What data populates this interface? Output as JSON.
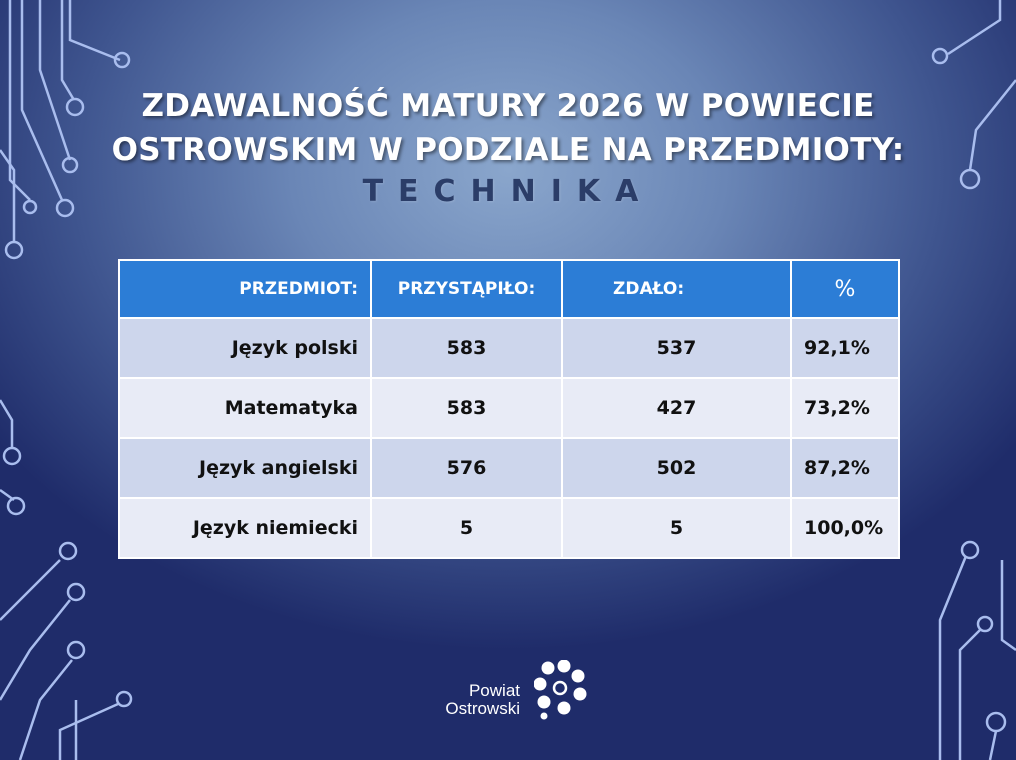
{
  "slide": {
    "title_line1": "ZDAWALNOŚĆ MATURY 2026 W POWIECIE",
    "title_line2": "OSTROWSKIM W PODZIALE NA PRZEDMIOTY:",
    "subtitle": "TECHNIKA"
  },
  "table": {
    "headers": [
      "PRZEDMIOT:",
      "PRZYSTĄPIŁO:",
      "ZDAŁO:",
      "%"
    ],
    "rows": [
      {
        "subject": "Język polski",
        "taken": "583",
        "passed": "537",
        "pct": "92,1%"
      },
      {
        "subject": "Matematyka",
        "taken": "583",
        "passed": "427",
        "pct": "73,2%"
      },
      {
        "subject": "Język angielski",
        "taken": "576",
        "passed": "502",
        "pct": "87,2%"
      },
      {
        "subject": "Język niemiecki",
        "taken": "5",
        "passed": "5",
        "pct": "100,0%"
      }
    ]
  },
  "logo": {
    "line1": "Powiat",
    "line2": "Ostrowski"
  },
  "colors": {
    "header_bg": "#2c7dd6",
    "row_odd": "#cdd6ec",
    "row_even": "#e8ebf6",
    "circuit": "#9fb3e6",
    "subtitle": "#2b3d68"
  }
}
